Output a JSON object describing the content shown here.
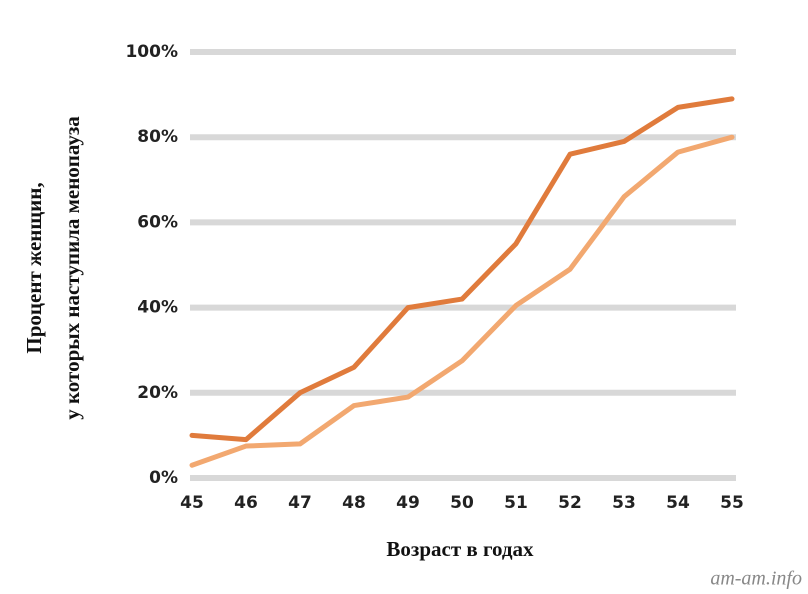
{
  "chart_data": {
    "type": "line",
    "y_label": [
      "Процент женщин,",
      "у которых наступила менопауза"
    ],
    "x_label": "Возраст в годах",
    "watermark": "am-am.info",
    "x": [
      45,
      46,
      47,
      48,
      49,
      50,
      51,
      52,
      53,
      54,
      55
    ],
    "series": [
      {
        "color": "#e07b3c",
        "values": [
          10,
          9,
          20,
          26,
          40,
          42,
          55,
          76,
          79,
          87,
          89
        ]
      },
      {
        "color": "#f2a870",
        "values": [
          3,
          7.5,
          8,
          17,
          19,
          27.5,
          40.5,
          49,
          66,
          76.5,
          80
        ]
      }
    ],
    "xlim": [
      45,
      55
    ],
    "xticks": [
      45,
      46,
      47,
      48,
      49,
      50,
      51,
      52,
      53,
      54,
      55
    ],
    "ylim": [
      0,
      100
    ],
    "yticks": [
      {
        "value": 0,
        "label": "0%"
      },
      {
        "value": 20,
        "label": "20%"
      },
      {
        "value": 40,
        "label": "40%"
      },
      {
        "value": 60,
        "label": "60%"
      },
      {
        "value": 80,
        "label": "80%"
      },
      {
        "value": 100,
        "label": "100%"
      }
    ],
    "grid": true
  }
}
